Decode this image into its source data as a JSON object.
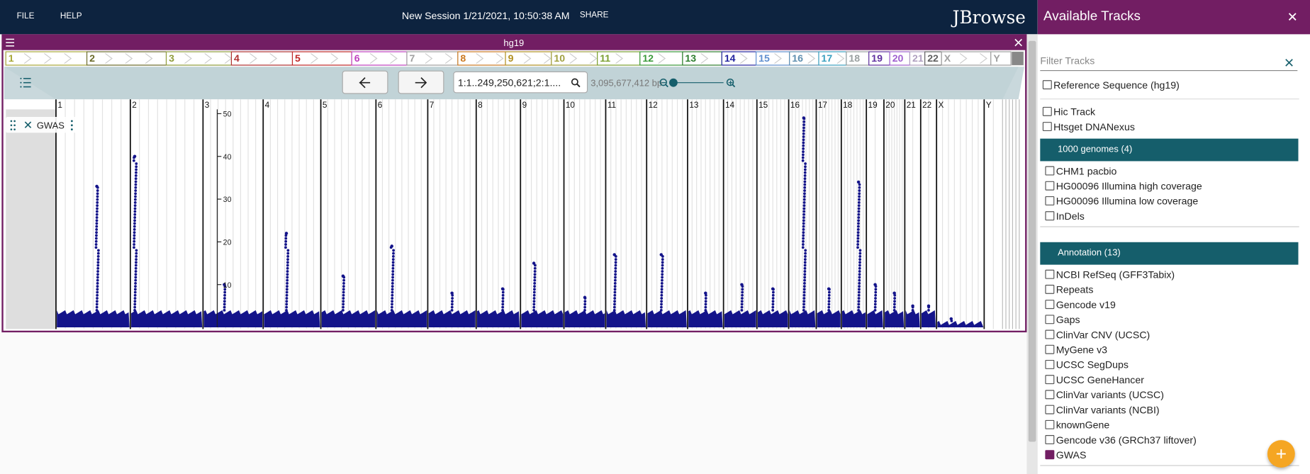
{
  "header": {
    "menus": [
      "FILE",
      "HELP"
    ],
    "session": "New Session 1/21/2021, 10:50:38 AM",
    "share": "SHARE",
    "logo": "JBrowse"
  },
  "view": {
    "assembly": "hg19",
    "location": "1:1..249,250,621;2:1....",
    "bp": "3,095,677,412 bp",
    "chromosomes": [
      "1",
      "2",
      "3",
      "4",
      "5",
      "6",
      "7",
      "8",
      "9",
      "10",
      "11",
      "12",
      "13",
      "14",
      "15",
      "16",
      "17",
      "18",
      "19",
      "20",
      "21",
      "22",
      "X",
      "Y"
    ],
    "chromosome_colors": [
      "#a8a838",
      "#6b6b2a",
      "#8f9c3a",
      "#b03030",
      "#c02828",
      "#c040c0",
      "#a0a0a0",
      "#cc7a22",
      "#b09020",
      "#a0a040",
      "#7aa030",
      "#3a9a3a",
      "#2e7e2e",
      "#2424a0",
      "#5f8fd0",
      "#5f8fb0",
      "#3aa0c0",
      "#9aa0a0",
      "#6030a0",
      "#a060d0",
      "#b0a0c0",
      "#606060",
      "#a0a0a0",
      "#a0a0a0"
    ],
    "track": {
      "label": "GWAS",
      "ylim": [
        0,
        51
      ],
      "yticks": [
        10,
        20,
        30,
        40,
        50
      ],
      "color": "#14148a",
      "baseline": [
        4,
        4,
        4,
        4,
        4,
        4,
        4,
        4,
        4,
        4,
        4,
        4,
        4,
        4,
        4,
        4,
        4,
        4,
        4,
        4,
        4,
        4,
        1.5,
        null
      ],
      "peaks": [
        33,
        40,
        10,
        22,
        12,
        19,
        8,
        9,
        15,
        7,
        17,
        17,
        8,
        10,
        9,
        49,
        9,
        34,
        10,
        8,
        5,
        5,
        2,
        null
      ]
    }
  },
  "tracks_panel": {
    "title": "Available Tracks",
    "filter": "Filter Tracks",
    "items": [
      {
        "label": "Reference Sequence (hg19)",
        "checked": false
      },
      {
        "label": "Hic Track",
        "checked": false
      },
      {
        "label": "Htsget DNANexus",
        "checked": false
      }
    ],
    "categories": [
      {
        "title": "1000 genomes (4)",
        "items": [
          {
            "label": "CHM1 pacbio",
            "checked": false
          },
          {
            "label": "HG00096 Illumina high coverage",
            "checked": false
          },
          {
            "label": "HG00096 Illumina low coverage",
            "checked": false
          },
          {
            "label": "InDels",
            "checked": false
          }
        ]
      },
      {
        "title": "Annotation (13)",
        "items": [
          {
            "label": "NCBI RefSeq (GFF3Tabix)",
            "checked": false
          },
          {
            "label": "Repeats",
            "checked": false
          },
          {
            "label": "Gencode v19",
            "checked": false
          },
          {
            "label": "Gaps",
            "checked": false
          },
          {
            "label": "ClinVar CNV (UCSC)",
            "checked": false
          },
          {
            "label": "MyGene v3",
            "checked": false
          },
          {
            "label": "UCSC SegDups",
            "checked": false
          },
          {
            "label": "UCSC GeneHancer",
            "checked": false
          },
          {
            "label": "ClinVar variants (UCSC)",
            "checked": false
          },
          {
            "label": "ClinVar variants (NCBI)",
            "checked": false
          },
          {
            "label": "knownGene",
            "checked": false
          },
          {
            "label": "Gencode v36 (GRCh37 liftover)",
            "checked": false
          },
          {
            "label": "GWAS",
            "checked": true
          }
        ]
      }
    ]
  }
}
